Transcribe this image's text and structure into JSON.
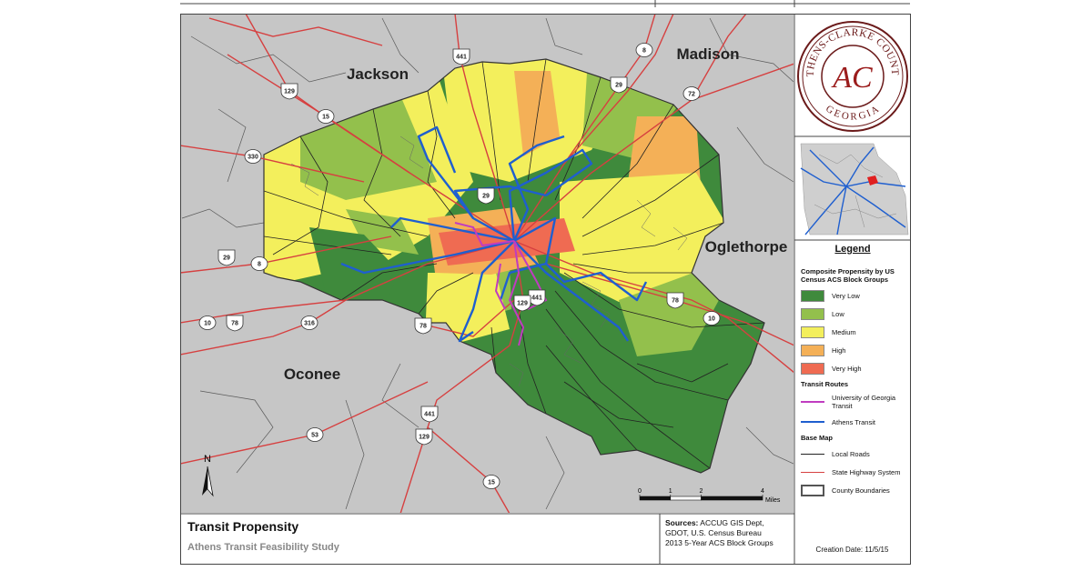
{
  "map": {
    "counties": [
      "Jackson",
      "Madison",
      "Oglethorpe",
      "Oconee"
    ],
    "highways": [
      441,
      8,
      29,
      129,
      15,
      330,
      72,
      29,
      29,
      8,
      10,
      78,
      316,
      78,
      441,
      129,
      78,
      10,
      53,
      441,
      129,
      15
    ],
    "north": "N",
    "scale": {
      "ticks": [
        0,
        1,
        2,
        4
      ],
      "unit": "Miles"
    }
  },
  "logo": {
    "ring_top": "ATHENS-CLARKE COUNTY",
    "monogram": "AC",
    "ring_bottom": "GEORGIA"
  },
  "legend": {
    "title": "Legend",
    "propensity": {
      "heading": "Composite Propensity by US Census ACS Block Groups",
      "items": [
        {
          "label": "Very Low",
          "color": "#3f8a3c"
        },
        {
          "label": "Low",
          "color": "#93c04c"
        },
        {
          "label": "Medium",
          "color": "#f3ef5c"
        },
        {
          "label": "High",
          "color": "#f4b057"
        },
        {
          "label": "Very High",
          "color": "#ef6b52"
        }
      ]
    },
    "transit": {
      "heading": "Transit Routes",
      "items": [
        {
          "label": "University of Georgia Transit",
          "color": "#c03cc0"
        },
        {
          "label": "Athens Transit",
          "color": "#1f5fcf"
        }
      ]
    },
    "base_map": {
      "heading": "Base Map",
      "items": [
        "Local Roads",
        "State Highway System",
        "County Boundaries"
      ]
    }
  },
  "title_block": {
    "title": "Transit Propensity",
    "subtitle": "Athens Transit Feasibility Study",
    "sources_label": "Sources:",
    "sources": [
      "ACCUG GIS Dept,",
      "GDOT, U.S. Census Bureau",
      "2013 5-Year ACS Block Groups"
    ],
    "creation_date": "Creation Date: 11/5/15"
  }
}
